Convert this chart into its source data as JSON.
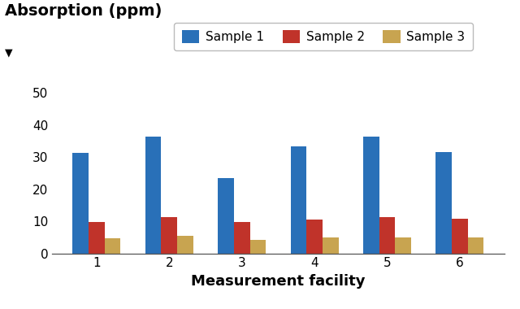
{
  "categories": [
    "1",
    "2",
    "3",
    "4",
    "5",
    "6"
  ],
  "sample1": [
    31.2,
    36.5,
    23.5,
    33.3,
    36.5,
    31.7
  ],
  "sample2": [
    9.8,
    11.3,
    9.9,
    10.5,
    11.2,
    10.8
  ],
  "sample3": [
    4.7,
    5.6,
    4.1,
    5.0,
    4.9,
    4.9
  ],
  "color1": "#2970b8",
  "color2": "#c0332a",
  "color3": "#c8a450",
  "xlabel": "Measurement facility",
  "ylabel_title": "Absorption (ppm)",
  "ylabel_arrow": "▼",
  "legend_labels": [
    "Sample 1",
    "Sample 2",
    "Sample 3"
  ],
  "ylim": [
    0,
    52
  ],
  "yticks": [
    0,
    10,
    20,
    30,
    40,
    50
  ],
  "bar_width": 0.22,
  "label_fontsize": 13,
  "tick_fontsize": 11,
  "legend_fontsize": 11,
  "title_fontsize": 14
}
